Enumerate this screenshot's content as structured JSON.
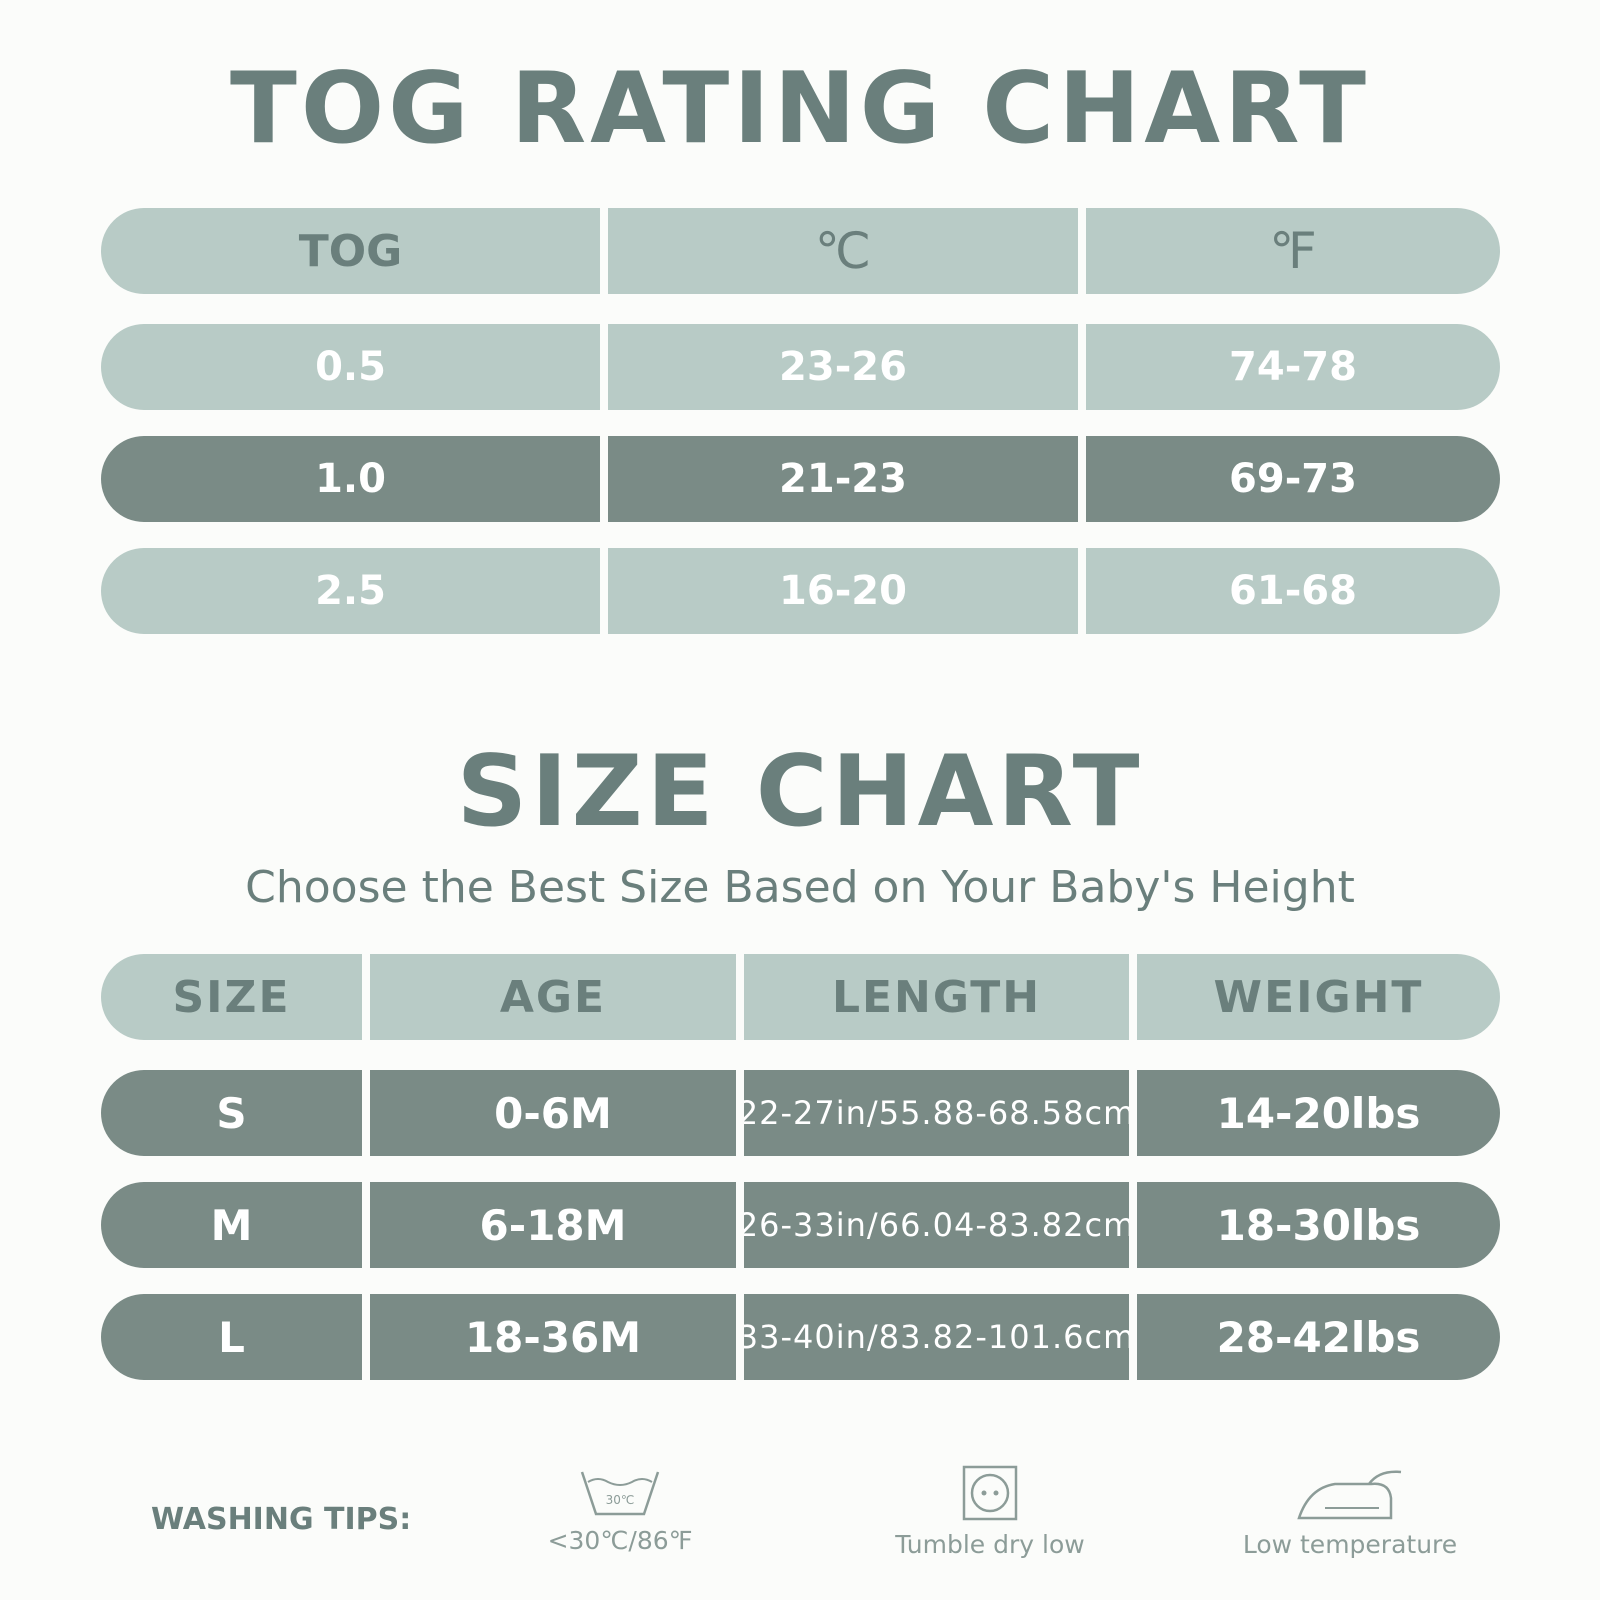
{
  "tog_chart": {
    "title": "TOG RATING CHART",
    "headers": [
      "TOG",
      "℃",
      "℉"
    ],
    "rows": [
      {
        "tog": "0.5",
        "celsius": "23-26",
        "fahrenheit": "74-78",
        "highlight": false
      },
      {
        "tog": "1.0",
        "celsius": "21-23",
        "fahrenheit": "69-73",
        "highlight": true
      },
      {
        "tog": "2.5",
        "celsius": "16-20",
        "fahrenheit": "61-68",
        "highlight": false
      }
    ]
  },
  "size_chart": {
    "title": "SIZE CHART",
    "subtitle": "Choose the Best Size Based on Your Baby's Height",
    "headers": [
      "SIZE",
      "AGE",
      "LENGTH",
      "WEIGHT"
    ],
    "rows": [
      {
        "size": "S",
        "age": "0-6M",
        "length": "22-27in/55.88-68.58cm",
        "weight": "14-20lbs"
      },
      {
        "size": "M",
        "age": "6-18M",
        "length": "26-33in/66.04-83.82cm",
        "weight": "18-30lbs"
      },
      {
        "size": "L",
        "age": "18-36M",
        "length": "33-40in/83.82-101.6cm",
        "weight": "28-42lbs"
      }
    ]
  },
  "washing": {
    "label": "WASHING TIPS:",
    "items": [
      {
        "icon": "wash-tub-icon",
        "icon_text": "30℃",
        "label": "<30℃/86℉"
      },
      {
        "icon": "tumble-dry-icon",
        "label": "Tumble dry low"
      },
      {
        "icon": "iron-icon",
        "label": "Low temperature"
      }
    ]
  },
  "colors": {
    "text_primary": "#6a7f7c",
    "light_row": "#b8cbc6",
    "dark_row": "#7a8b86",
    "background": "#fbfcfa"
  }
}
